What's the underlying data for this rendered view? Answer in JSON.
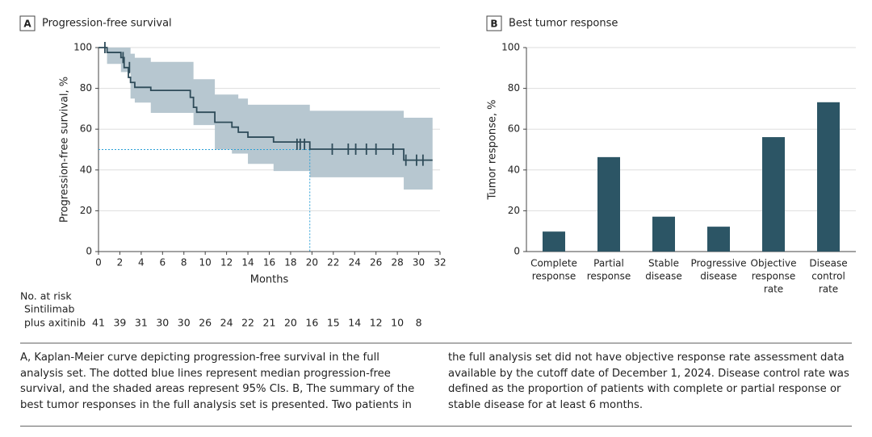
{
  "chart_data": [
    {
      "type": "step",
      "panel": "A",
      "title": "Progression-free survival",
      "x_label": "Months",
      "y_label": "Progression-free survival, %",
      "x": [
        0,
        0.8,
        2.1,
        2.4,
        2.8,
        3.0,
        3.4,
        4.9,
        8.6,
        8.9,
        9.2,
        10.9,
        12.5,
        13.1,
        14.0,
        16.4,
        19.8,
        28.6,
        31.3
      ],
      "values": [
        100,
        97.6,
        95.1,
        90.2,
        85.4,
        82.9,
        80.5,
        79.0,
        75.6,
        70.7,
        68.3,
        63.4,
        61.0,
        58.5,
        56.1,
        53.7,
        50.2,
        44.8,
        44.8
      ],
      "ci_upper": [
        100,
        100,
        100,
        100,
        100,
        97,
        95,
        93,
        93,
        84.5,
        84.5,
        77,
        77,
        75,
        72,
        72,
        69,
        65.6,
        65.6
      ],
      "ci_lower": [
        100,
        92,
        88,
        88,
        88,
        75,
        73,
        68,
        68,
        62,
        62,
        50,
        48,
        48,
        43,
        39.5,
        36.4,
        30.4,
        30.4
      ],
      "censored_x": [
        0.6,
        2.3,
        2.9,
        18.6,
        18.9,
        19.3,
        21.9,
        23.4,
        24.1,
        25.1,
        26.0,
        27.6,
        28.8,
        29.8,
        30.4
      ],
      "censored_y": [
        100,
        95.1,
        90.2,
        52.6,
        52.6,
        52.6,
        50.2,
        50.2,
        50.2,
        50.2,
        50.2,
        50.2,
        44.8,
        44.8,
        44.8
      ],
      "median": {
        "x": 19.8,
        "y": 50
      },
      "color": "#2e4b59",
      "band_color": "#b7c7d0",
      "median_color": "#2a9fd6",
      "xlim": [
        0,
        32
      ],
      "xticks": [
        0,
        2,
        4,
        6,
        8,
        10,
        12,
        14,
        16,
        18,
        20,
        22,
        24,
        26,
        28,
        30,
        32
      ],
      "ylim": [
        0,
        100
      ],
      "yticks": [
        0,
        20,
        40,
        60,
        80,
        100
      ],
      "grid": true,
      "risk_table": {
        "title": "No. at risk",
        "group": [
          "Sintilimab",
          "plus axitinib"
        ],
        "values": [
          41,
          39,
          31,
          30,
          30,
          26,
          24,
          22,
          21,
          20,
          16,
          15,
          14,
          12,
          10,
          8
        ]
      }
    },
    {
      "type": "bar",
      "panel": "B",
      "title": "Best tumor response",
      "y_label": "Tumor response, %",
      "categories": [
        [
          "Complete",
          "response"
        ],
        [
          "Partial",
          "response"
        ],
        [
          "Stable",
          "disease"
        ],
        [
          "Progressive",
          "disease"
        ],
        [
          "Objective",
          "response",
          "rate"
        ],
        [
          "Disease",
          "control",
          "rate"
        ]
      ],
      "values": [
        9.8,
        46.3,
        17.1,
        12.2,
        56.1,
        73.2
      ],
      "color": "#2c5565",
      "ylim": [
        0,
        100
      ],
      "yticks": [
        0,
        20,
        40,
        60,
        80,
        100
      ],
      "grid": true
    }
  ],
  "caption": "A, Kaplan-Meier curve depicting progression-free survival in the full analysis set. The dotted blue lines represent median progression-free survival, and the shaded areas represent 95% CIs. B, The summary of the best tumor responses in the full analysis set is presented. Two patients in the full analysis set did not have objective response rate assessment data available by the cutoff date of December 1, 2024. Disease control rate was defined as the proportion of patients with complete or partial response or stable disease for at least 6 months."
}
